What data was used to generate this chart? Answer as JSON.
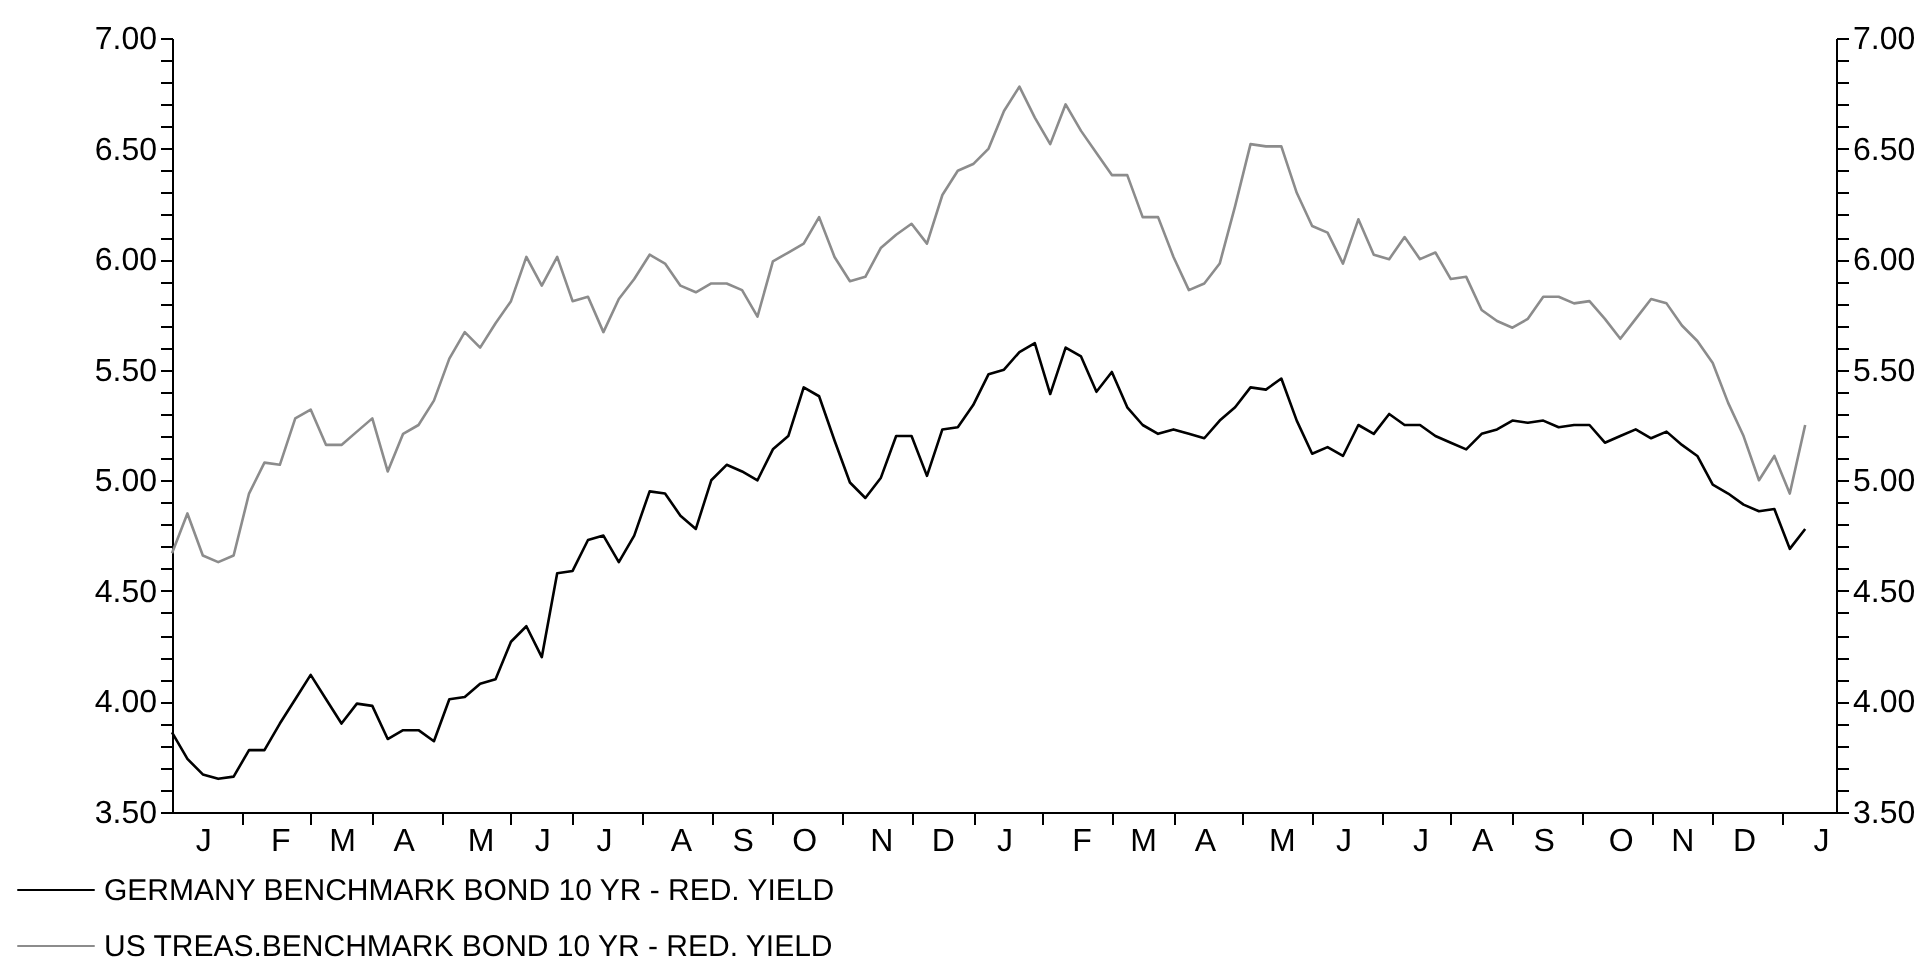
{
  "chart_data": {
    "type": "line",
    "legend": "bottom",
    "categories": [
      null,
      null,
      "J",
      null,
      null,
      null,
      null,
      "F",
      null,
      null,
      null,
      "M",
      null,
      null,
      null,
      "A",
      null,
      null,
      null,
      null,
      "M",
      null,
      null,
      null,
      "J",
      null,
      null,
      null,
      "J",
      null,
      null,
      null,
      null,
      "A",
      null,
      null,
      null,
      "S",
      null,
      null,
      null,
      "O",
      null,
      null,
      null,
      null,
      "N",
      null,
      null,
      null,
      "D",
      null,
      null,
      null,
      "J",
      null,
      null,
      null,
      null,
      "F",
      null,
      null,
      null,
      "M",
      null,
      null,
      null,
      "A",
      null,
      null,
      null,
      null,
      "M",
      null,
      null,
      null,
      "J",
      null,
      null,
      null,
      null,
      "J",
      null,
      null,
      null,
      "A",
      null,
      null,
      null,
      "S",
      null,
      null,
      null,
      null,
      "O",
      null,
      null,
      null,
      "N",
      null,
      null,
      null,
      "D",
      null,
      null,
      null,
      null,
      "J",
      null
    ],
    "ylim": [
      3.5,
      7
    ],
    "yticks": [
      {
        "value": 3.5,
        "label": "3.50"
      },
      {
        "value": 3.6,
        "label": null
      },
      {
        "value": 3.7,
        "label": null
      },
      {
        "value": 3.8,
        "label": null
      },
      {
        "value": 3.9,
        "label": null
      },
      {
        "value": 4,
        "label": "4.00"
      },
      {
        "value": 4.1,
        "label": null
      },
      {
        "value": 4.2,
        "label": null
      },
      {
        "value": 4.3,
        "label": null
      },
      {
        "value": 4.4,
        "label": null
      },
      {
        "value": 4.5,
        "label": "4.50"
      },
      {
        "value": 4.6,
        "label": null
      },
      {
        "value": 4.7,
        "label": null
      },
      {
        "value": 4.8,
        "label": null
      },
      {
        "value": 4.9,
        "label": null
      },
      {
        "value": 5,
        "label": "5.00"
      },
      {
        "value": 5.1,
        "label": null
      },
      {
        "value": 5.2,
        "label": null
      },
      {
        "value": 5.3,
        "label": null
      },
      {
        "value": 5.4,
        "label": null
      },
      {
        "value": 5.5,
        "label": "5.50"
      },
      {
        "value": 5.6,
        "label": null
      },
      {
        "value": 5.7,
        "label": null
      },
      {
        "value": 5.8,
        "label": null
      },
      {
        "value": 5.9,
        "label": null
      },
      {
        "value": 6,
        "label": "6.00"
      },
      {
        "value": 6.1,
        "label": null
      },
      {
        "value": 6.2,
        "label": null
      },
      {
        "value": 6.3,
        "label": null
      },
      {
        "value": 6.4,
        "label": null
      },
      {
        "value": 6.5,
        "label": "6.50"
      },
      {
        "value": 6.6,
        "label": null
      },
      {
        "value": 6.7,
        "label": null
      },
      {
        "value": 6.8,
        "label": null
      },
      {
        "value": 6.9,
        "label": null
      },
      {
        "value": 7,
        "label": "7.00"
      }
    ],
    "y2lim": [
      3.5,
      7
    ],
    "y2ticks": [
      {
        "value": 3.5,
        "label": "3.50"
      },
      {
        "value": 3.6,
        "label": null
      },
      {
        "value": 3.7,
        "label": null
      },
      {
        "value": 3.8,
        "label": null
      },
      {
        "value": 3.9,
        "label": null
      },
      {
        "value": 4,
        "label": "4.00"
      },
      {
        "value": 4.1,
        "label": null
      },
      {
        "value": 4.2,
        "label": null
      },
      {
        "value": 4.3,
        "label": null
      },
      {
        "value": 4.4,
        "label": null
      },
      {
        "value": 4.5,
        "label": "4.50"
      },
      {
        "value": 4.6,
        "label": null
      },
      {
        "value": 4.7,
        "label": null
      },
      {
        "value": 4.8,
        "label": null
      },
      {
        "value": 4.9,
        "label": null
      },
      {
        "value": 5,
        "label": "5.00"
      },
      {
        "value": 5.1,
        "label": null
      },
      {
        "value": 5.2,
        "label": null
      },
      {
        "value": 5.3,
        "label": null
      },
      {
        "value": 5.4,
        "label": null
      },
      {
        "value": 5.5,
        "label": "5.50"
      },
      {
        "value": 5.6,
        "label": null
      },
      {
        "value": 5.7,
        "label": null
      },
      {
        "value": 5.8,
        "label": null
      },
      {
        "value": 5.9,
        "label": null
      },
      {
        "value": 6,
        "label": "6.00"
      },
      {
        "value": 6.1,
        "label": null
      },
      {
        "value": 6.2,
        "label": null
      },
      {
        "value": 6.3,
        "label": null
      },
      {
        "value": 6.4,
        "label": null
      },
      {
        "value": 6.5,
        "label": "6.50"
      },
      {
        "value": 6.6,
        "label": null
      },
      {
        "value": 6.7,
        "label": null
      },
      {
        "value": 6.8,
        "label": null
      },
      {
        "value": 6.9,
        "label": null
      },
      {
        "value": 7,
        "label": "7.00"
      }
    ],
    "series": [
      {
        "name": "GERMANY BENCHMARK BOND 10 YR - RED. YIELD",
        "color": "#000000",
        "values": [
          3.86,
          3.74,
          3.67,
          3.65,
          3.66,
          3.78,
          3.78,
          3.9,
          4.01,
          4.12,
          4.01,
          3.9,
          3.99,
          3.98,
          3.83,
          3.87,
          3.87,
          3.82,
          4.01,
          4.02,
          4.08,
          4.1,
          4.27,
          4.34,
          4.2,
          4.58,
          4.59,
          4.73,
          4.75,
          4.63,
          4.75,
          4.95,
          4.94,
          4.84,
          4.78,
          5.0,
          5.07,
          5.04,
          5.0,
          5.14,
          5.2,
          5.42,
          5.38,
          5.18,
          4.99,
          4.92,
          5.01,
          5.2,
          5.2,
          5.02,
          5.23,
          5.24,
          5.34,
          5.48,
          5.5,
          5.58,
          5.62,
          5.39,
          5.6,
          5.56,
          5.4,
          5.49,
          5.33,
          5.25,
          5.21,
          5.23,
          5.21,
          5.19,
          5.27,
          5.33,
          5.42,
          5.41,
          5.46,
          5.27,
          5.12,
          5.15,
          5.11,
          5.25,
          5.21,
          5.3,
          5.25,
          5.25,
          5.2,
          5.17,
          5.14,
          5.21,
          5.23,
          5.27,
          5.26,
          5.27,
          5.24,
          5.25,
          5.25,
          5.17,
          5.2,
          5.23,
          5.19,
          5.22,
          5.16,
          5.11,
          4.98,
          4.94,
          4.89,
          4.86,
          4.87,
          4.69,
          4.78,
          null,
          null
        ]
      },
      {
        "name": "US TREAS.BENCHMARK BOND 10 YR - RED. YIELD",
        "color": "#8c8c8c",
        "values": [
          4.67,
          4.85,
          4.66,
          4.63,
          4.66,
          4.94,
          5.08,
          5.07,
          5.28,
          5.32,
          5.16,
          5.16,
          5.22,
          5.28,
          5.04,
          5.21,
          5.25,
          5.36,
          5.55,
          5.67,
          5.6,
          5.71,
          5.81,
          6.01,
          5.88,
          6.01,
          5.81,
          5.83,
          5.67,
          5.82,
          5.91,
          6.02,
          5.98,
          5.88,
          5.85,
          5.89,
          5.89,
          5.86,
          5.74,
          5.99,
          6.03,
          6.07,
          6.19,
          6.01,
          5.9,
          5.92,
          6.05,
          6.11,
          6.16,
          6.07,
          6.29,
          6.4,
          6.43,
          6.5,
          6.67,
          6.78,
          6.64,
          6.52,
          6.7,
          6.58,
          6.48,
          6.38,
          6.38,
          6.19,
          6.19,
          6.01,
          5.86,
          5.89,
          5.98,
          6.24,
          6.52,
          6.51,
          6.51,
          6.3,
          6.15,
          6.12,
          5.98,
          6.18,
          6.02,
          6.0,
          6.1,
          6.0,
          6.03,
          5.91,
          5.92,
          5.77,
          5.72,
          5.69,
          5.73,
          5.83,
          5.83,
          5.8,
          5.81,
          5.73,
          5.64,
          5.73,
          5.82,
          5.8,
          5.7,
          5.63,
          5.53,
          5.35,
          5.2,
          5.0,
          5.11,
          4.94,
          5.25,
          null,
          null
        ]
      }
    ]
  }
}
